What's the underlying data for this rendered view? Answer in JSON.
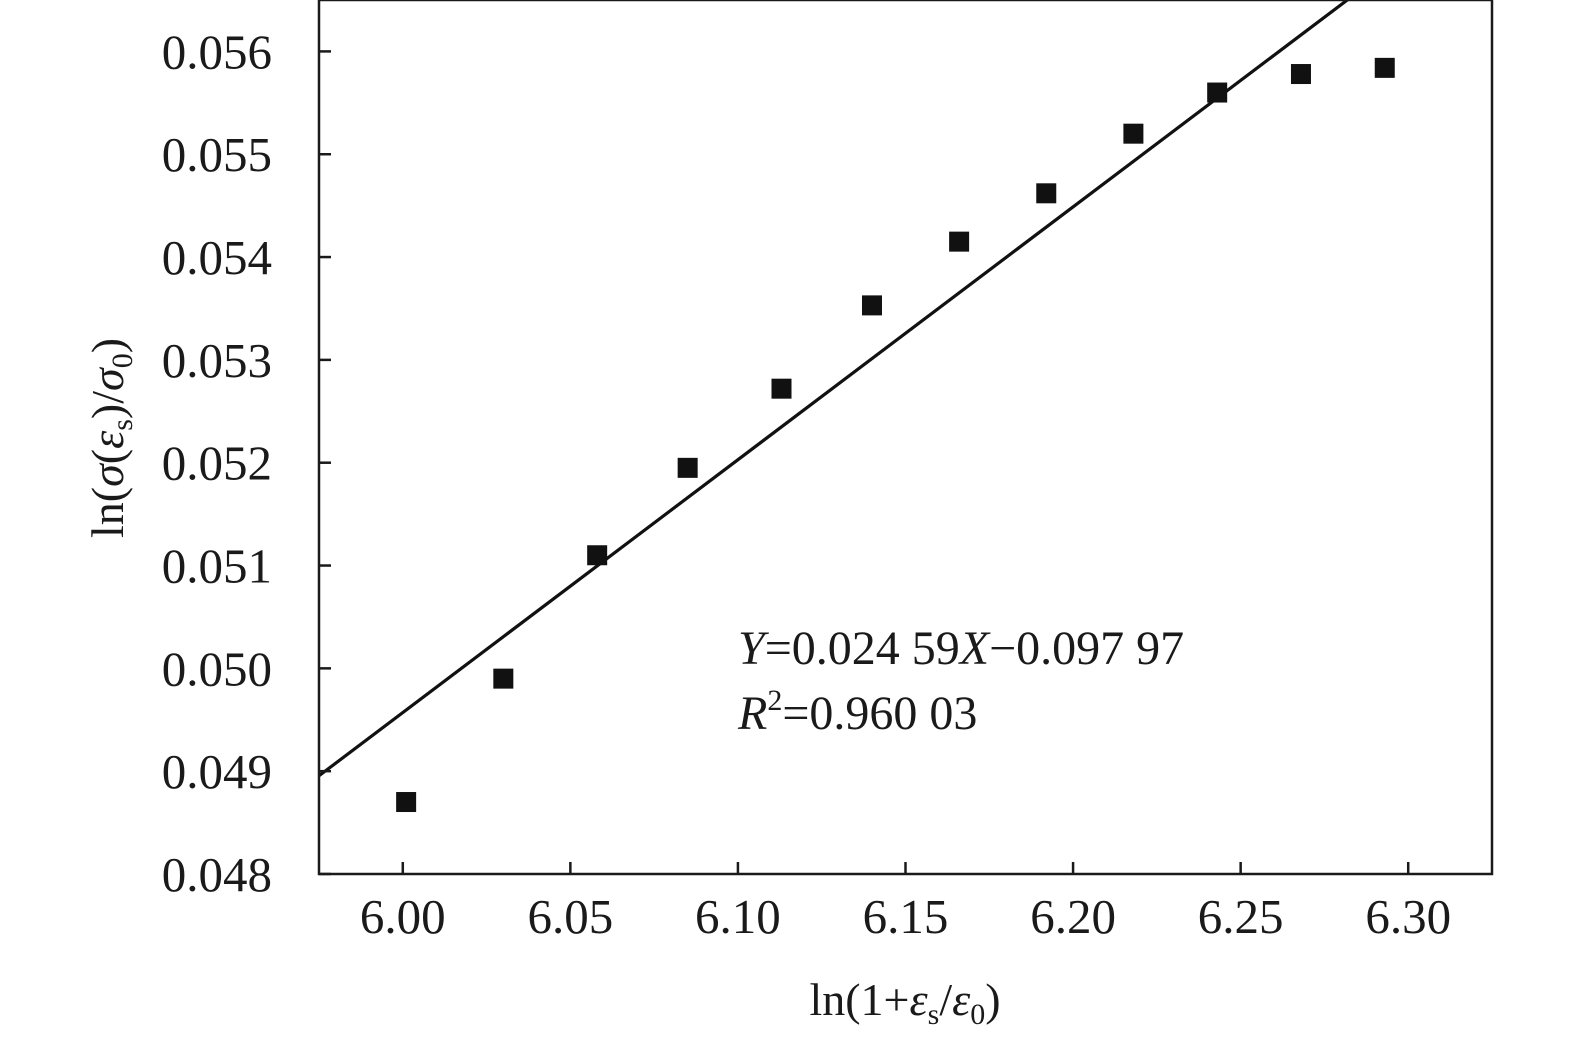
{
  "chart_data": {
    "type": "scatter",
    "title": "",
    "xlabel": {
      "prefix": "ln(1+",
      "sym1": "ε",
      "sub1": "s",
      "slash": "/",
      "sym2": "ε",
      "sub2": "0",
      "suffix": ")"
    },
    "ylabel": {
      "prefix": "ln(",
      "sym1": "σ",
      "open": "(",
      "sym2": "ε",
      "sub2": "s",
      "close": ")/",
      "sym3": "σ",
      "sub3": "0",
      "suffix": ")"
    },
    "xlim": [
      5.975,
      6.325
    ],
    "ylim": [
      0.048,
      0.0565
    ],
    "xticks": [
      6.0,
      6.05,
      6.1,
      6.15,
      6.2,
      6.25,
      6.3
    ],
    "xtick_labels": [
      "6.00",
      "6.05",
      "6.10",
      "6.15",
      "6.20",
      "6.25",
      "6.30"
    ],
    "yticks": [
      0.048,
      0.049,
      0.05,
      0.051,
      0.052,
      0.053,
      0.054,
      0.055,
      0.056
    ],
    "ytick_labels": [
      "0.048",
      "0.049",
      "0.050",
      "0.051",
      "0.052",
      "0.053",
      "0.054",
      "0.055",
      "0.056"
    ],
    "grid": false,
    "legend": "none",
    "series": [
      {
        "type": "scatter",
        "marker": "square",
        "color": "#111111",
        "x": [
          6.001,
          6.03,
          6.058,
          6.085,
          6.113,
          6.14,
          6.166,
          6.192,
          6.218,
          6.243,
          6.268,
          6.293
        ],
        "y": [
          0.0487,
          0.0499,
          0.0511,
          0.05195,
          0.05272,
          0.05353,
          0.05415,
          0.05462,
          0.0552,
          0.0556,
          0.05578,
          0.05584
        ]
      },
      {
        "type": "line",
        "fit": "linear",
        "color": "#111111",
        "slope": 0.02459,
        "intercept": -0.09797
      }
    ],
    "annotations": {
      "eq": {
        "y_sym": "Y",
        "eq_mid": "=0.024 59",
        "x_sym": "X",
        "eq_end": "−0.097 97"
      },
      "r2": {
        "r_sym": "R",
        "r_sup": "2",
        "r_val": "=0.960 03"
      }
    }
  }
}
